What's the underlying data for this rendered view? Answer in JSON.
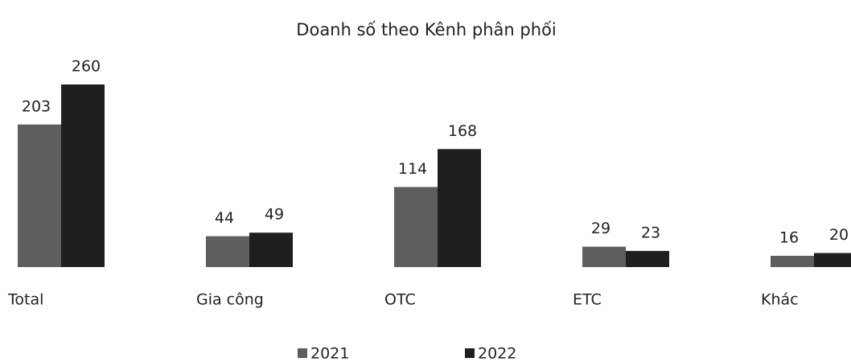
{
  "chart_data": {
    "type": "bar",
    "title": "Doanh số theo Kênh phân phối",
    "categories": [
      "Total",
      "Gia công",
      "OTC",
      "ETC",
      "Khác"
    ],
    "series": [
      {
        "name": "2021",
        "color": "#5e5e5e",
        "values": [
          203,
          44,
          114,
          29,
          16
        ]
      },
      {
        "name": "2022",
        "color": "#1f1f1f",
        "values": [
          260,
          49,
          168,
          23,
          20
        ]
      }
    ],
    "legend": "bottom"
  }
}
